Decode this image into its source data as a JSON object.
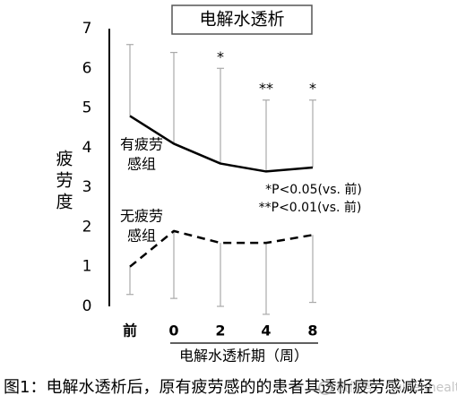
{
  "chart_data": {
    "type": "line",
    "title": "电解水透析",
    "ylabel": "疲劳度",
    "xlabel": "电解水透析期（周）",
    "categories": [
      "前",
      "0",
      "2",
      "4",
      "8"
    ],
    "y_ticks": [
      "0",
      "1",
      "2",
      "3",
      "4",
      "5",
      "6",
      "7"
    ],
    "ylim": [
      0,
      7
    ],
    "grid": false,
    "series": [
      {
        "name": "有疲劳感组",
        "label_lines": [
          "有疲劳",
          "感组"
        ],
        "style": "solid",
        "values": [
          4.8,
          4.1,
          3.6,
          3.4,
          3.5
        ],
        "error_upper": [
          6.6,
          6.4,
          6.0,
          5.2,
          5.2
        ],
        "significance": [
          "",
          "",
          "*",
          "**",
          "*"
        ]
      },
      {
        "name": "无疲劳感组",
        "label_lines": [
          "无疲劳",
          "感组"
        ],
        "style": "dashed",
        "values": [
          1.0,
          1.9,
          1.6,
          1.6,
          1.8
        ],
        "error_lower": [
          0.3,
          0.2,
          0.0,
          -0.2,
          0.1
        ]
      }
    ],
    "annotations": [
      "*P<0.05(vs. 前)",
      "**P<0.01(vs. 前)"
    ]
  },
  "caption": "图1：电解水透析后，原有疲劳感的的患者其透析疲劳感减轻",
  "watermark": "微信号：Suikenhealth",
  "colors": {
    "line": "#000000",
    "error_bar": "#aaaaaa",
    "title_border": "#555555"
  }
}
